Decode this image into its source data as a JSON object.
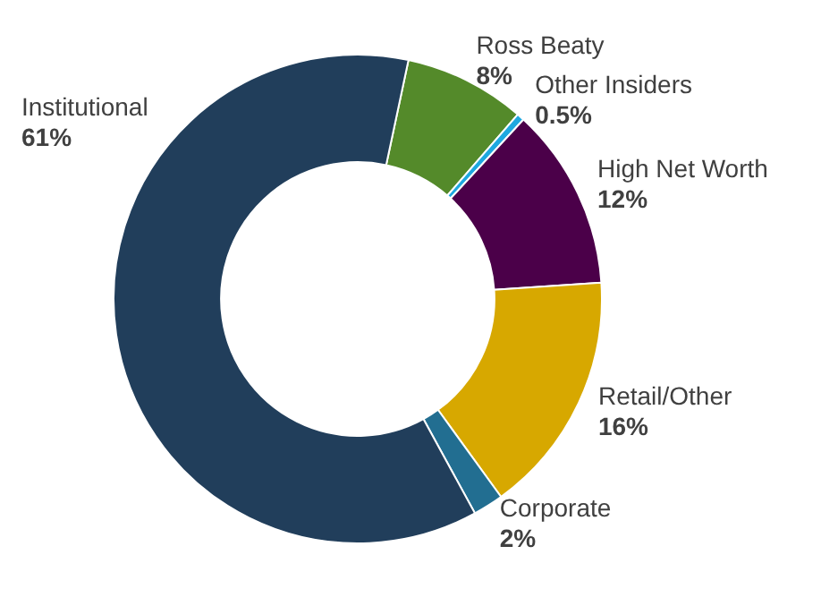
{
  "chart_data": {
    "type": "donut",
    "categories": [
      "Ross Beaty",
      "Other Insiders",
      "High Net Worth",
      "Retail/Other",
      "Corporate",
      "Institutional"
    ],
    "values": [
      8,
      0.5,
      12,
      16,
      2,
      61
    ],
    "colors": [
      "#548a2a",
      "#1ea8e0",
      "#4b0049",
      "#d7a800",
      "#226e91",
      "#213e5b"
    ],
    "value_labels": [
      "8%",
      "0.5%",
      "12%",
      "16%",
      "2%",
      "61%"
    ],
    "legend": false
  }
}
